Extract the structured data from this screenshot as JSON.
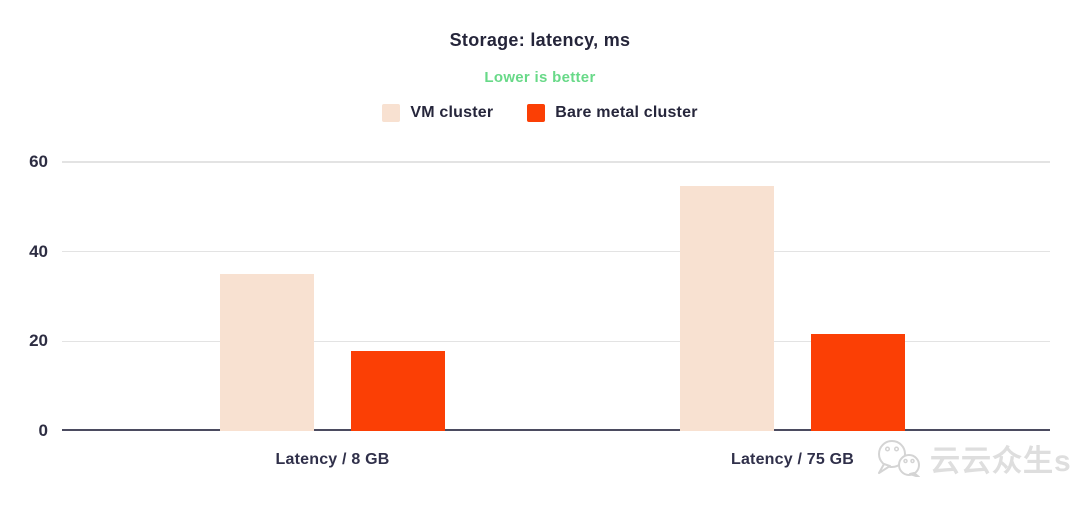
{
  "chart_data": {
    "type": "bar",
    "title": "Storage: latency, ms",
    "subtitle": "Lower is better",
    "categories": [
      "Latency / 8 GB",
      "Latency / 75 GB"
    ],
    "series": [
      {
        "name": "VM cluster",
        "color": "#f8e1d1",
        "values": [
          35,
          54.7
        ]
      },
      {
        "name": "Bare metal cluster",
        "color": "#fb3f05",
        "values": [
          17.8,
          21.7
        ]
      }
    ],
    "yticks": [
      0,
      20,
      40,
      60
    ],
    "ylim": [
      0,
      60
    ],
    "grid": true,
    "legend_position": "top",
    "xlabel": "",
    "ylabel": ""
  },
  "colors": {
    "title_text": "#25253a",
    "subtitle_green": "#68d988",
    "grid_line": "#e3e3e3",
    "baseline": "#4b4b60",
    "vm_cluster": "#f8e1d1",
    "bare_metal_cluster": "#fb3f05"
  },
  "watermark": {
    "text": "云云众生s",
    "icon": "wechat-logo-icon"
  }
}
